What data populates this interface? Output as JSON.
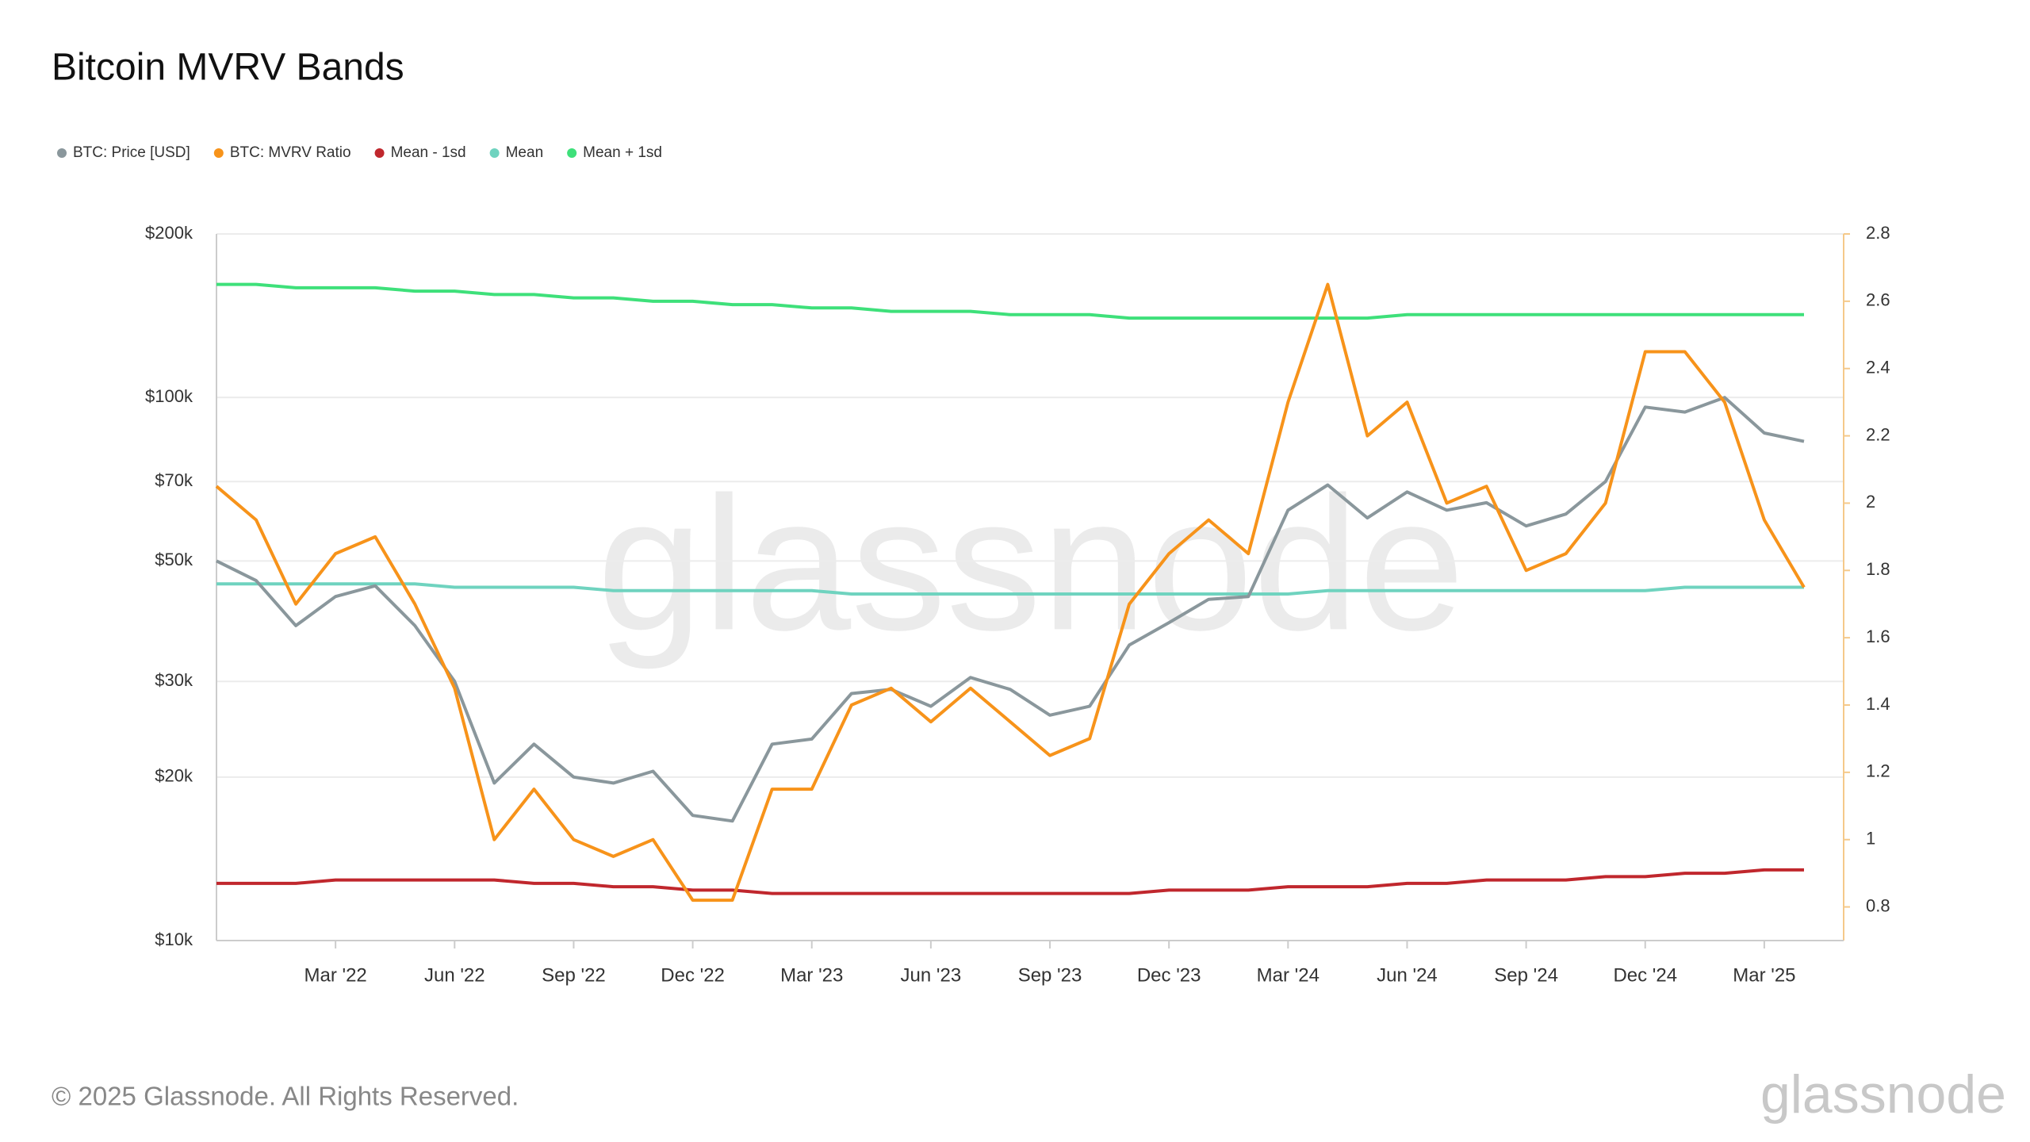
{
  "chart_data": {
    "type": "line",
    "title": "Bitcoin MVRV Bands",
    "watermark": "glassnode",
    "footer": "© 2025 Glassnode. All Rights Reserved.",
    "logo": "glassnode",
    "x": [
      "2021-12",
      "2022-01",
      "2022-02",
      "2022-03",
      "2022-04",
      "2022-05",
      "2022-06",
      "2022-07",
      "2022-08",
      "2022-09",
      "2022-10",
      "2022-11",
      "2022-12",
      "2023-01",
      "2023-02",
      "2023-03",
      "2023-04",
      "2023-05",
      "2023-06",
      "2023-07",
      "2023-08",
      "2023-09",
      "2023-10",
      "2023-11",
      "2023-12",
      "2024-01",
      "2024-02",
      "2024-03",
      "2024-04",
      "2024-05",
      "2024-06",
      "2024-07",
      "2024-08",
      "2024-09",
      "2024-10",
      "2024-11",
      "2024-12",
      "2025-01",
      "2025-02",
      "2025-03",
      "2025-04"
    ],
    "xlim": [
      "2021-12",
      "2025-05"
    ],
    "xticks": [
      {
        "value": "2022-03",
        "label": "Mar '22"
      },
      {
        "value": "2022-06",
        "label": "Jun '22"
      },
      {
        "value": "2022-09",
        "label": "Sep '22"
      },
      {
        "value": "2022-12",
        "label": "Dec '22"
      },
      {
        "value": "2023-03",
        "label": "Mar '23"
      },
      {
        "value": "2023-06",
        "label": "Jun '23"
      },
      {
        "value": "2023-09",
        "label": "Sep '23"
      },
      {
        "value": "2023-12",
        "label": "Dec '23"
      },
      {
        "value": "2024-03",
        "label": "Mar '24"
      },
      {
        "value": "2024-06",
        "label": "Jun '24"
      },
      {
        "value": "2024-09",
        "label": "Sep '24"
      },
      {
        "value": "2024-12",
        "label": "Dec '24"
      },
      {
        "value": "2025-03",
        "label": "Mar '25"
      }
    ],
    "ylim": [
      10000,
      200000
    ],
    "log_scale": true,
    "yticks": [
      {
        "value": 10000,
        "label": "$10k"
      },
      {
        "value": 20000,
        "label": "$20k"
      },
      {
        "value": 30000,
        "label": "$30k"
      },
      {
        "value": 50000,
        "label": "$50k"
      },
      {
        "value": 70000,
        "label": "$70k"
      },
      {
        "value": 100000,
        "label": "$100k"
      },
      {
        "value": 200000,
        "label": "$200k"
      }
    ],
    "y2lim": [
      0.7,
      2.8
    ],
    "y2ticks": [
      0.8,
      1,
      1.2,
      1.4,
      1.6,
      1.8,
      2,
      2.2,
      2.4,
      2.6,
      2.8
    ],
    "grid": true,
    "legend": "top-left",
    "series": [
      {
        "name": "BTC: Price [USD]",
        "color": "#8a979c",
        "axis": "y",
        "values": [
          50000,
          46000,
          38000,
          43000,
          45000,
          38000,
          30000,
          19500,
          23000,
          20000,
          19500,
          20500,
          17000,
          16600,
          23000,
          23500,
          28500,
          29000,
          27000,
          30500,
          29000,
          26000,
          27000,
          35000,
          38500,
          42500,
          43000,
          62000,
          69000,
          60000,
          67000,
          62000,
          64000,
          58000,
          61000,
          70000,
          96000,
          94000,
          100000,
          86000,
          83000
        ]
      },
      {
        "name": "BTC: MVRV Ratio",
        "color": "#f7931a",
        "axis": "y2",
        "values": [
          2.05,
          1.95,
          1.7,
          1.85,
          1.9,
          1.7,
          1.45,
          1.0,
          1.15,
          1.0,
          0.95,
          1.0,
          0.82,
          0.82,
          1.15,
          1.15,
          1.4,
          1.45,
          1.35,
          1.45,
          1.35,
          1.25,
          1.3,
          1.7,
          1.85,
          1.95,
          1.85,
          2.3,
          2.65,
          2.2,
          2.3,
          2.0,
          2.05,
          1.8,
          1.85,
          2.0,
          2.45,
          2.45,
          2.3,
          1.95,
          1.75
        ]
      },
      {
        "name": "Mean - 1sd",
        "color": "#c0272d",
        "axis": "y2",
        "values": [
          0.87,
          0.87,
          0.87,
          0.88,
          0.88,
          0.88,
          0.88,
          0.88,
          0.87,
          0.87,
          0.86,
          0.86,
          0.85,
          0.85,
          0.84,
          0.84,
          0.84,
          0.84,
          0.84,
          0.84,
          0.84,
          0.84,
          0.84,
          0.84,
          0.85,
          0.85,
          0.85,
          0.86,
          0.86,
          0.86,
          0.87,
          0.87,
          0.88,
          0.88,
          0.88,
          0.89,
          0.89,
          0.9,
          0.9,
          0.91,
          0.91
        ]
      },
      {
        "name": "Mean",
        "color": "#6fd3bf",
        "axis": "y2",
        "values": [
          1.76,
          1.76,
          1.76,
          1.76,
          1.76,
          1.76,
          1.75,
          1.75,
          1.75,
          1.75,
          1.74,
          1.74,
          1.74,
          1.74,
          1.74,
          1.74,
          1.73,
          1.73,
          1.73,
          1.73,
          1.73,
          1.73,
          1.73,
          1.73,
          1.73,
          1.73,
          1.73,
          1.73,
          1.74,
          1.74,
          1.74,
          1.74,
          1.74,
          1.74,
          1.74,
          1.74,
          1.74,
          1.75,
          1.75,
          1.75,
          1.75
        ]
      },
      {
        "name": "Mean + 1sd",
        "color": "#3ee07a",
        "axis": "y2",
        "values": [
          2.65,
          2.65,
          2.64,
          2.64,
          2.64,
          2.63,
          2.63,
          2.62,
          2.62,
          2.61,
          2.61,
          2.6,
          2.6,
          2.59,
          2.59,
          2.58,
          2.58,
          2.57,
          2.57,
          2.57,
          2.56,
          2.56,
          2.56,
          2.55,
          2.55,
          2.55,
          2.55,
          2.55,
          2.55,
          2.55,
          2.56,
          2.56,
          2.56,
          2.56,
          2.56,
          2.56,
          2.56,
          2.56,
          2.56,
          2.56,
          2.56
        ]
      }
    ]
  }
}
